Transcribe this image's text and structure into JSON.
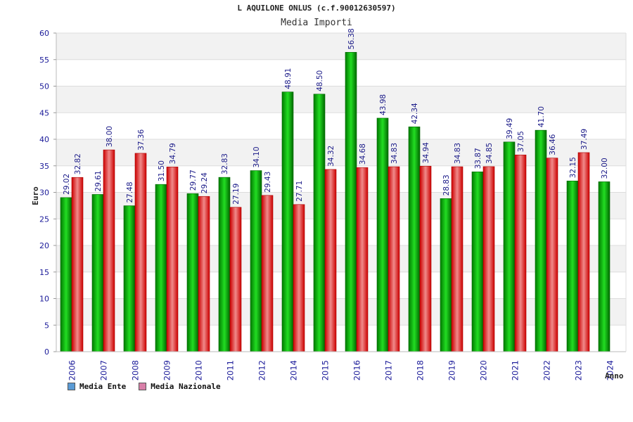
{
  "chart_data": {
    "type": "bar",
    "title": "L AQUILONE ONLUS (c.f.90012630597)",
    "subtitle": "Media Importi",
    "xlabel": "Anno",
    "ylabel": "Euro",
    "ylim": [
      0,
      60
    ],
    "yticks": [
      0,
      5,
      10,
      15,
      20,
      25,
      30,
      35,
      40,
      45,
      50,
      55,
      60
    ],
    "categories": [
      "2006",
      "2007",
      "2008",
      "2009",
      "2010",
      "2011",
      "2012",
      "2014",
      "2015",
      "2016",
      "2017",
      "2018",
      "2019",
      "2020",
      "2021",
      "2022",
      "2023",
      "2024"
    ],
    "series": [
      {
        "name": "Media Ente",
        "color": "#00aa00",
        "values": [
          29.02,
          29.61,
          27.48,
          31.5,
          29.77,
          32.83,
          34.1,
          48.91,
          48.5,
          56.38,
          43.98,
          42.34,
          28.83,
          33.87,
          39.49,
          41.7,
          32.15,
          32.0
        ],
        "labels": [
          "29.02",
          "29.61",
          "27.48",
          "31.50",
          "29.77",
          "32.83",
          "34.10",
          "48.91",
          "48.50",
          "56.38",
          "43.98",
          "42.34",
          "28.83",
          "33.87",
          "39.49",
          "41.70",
          "32.15",
          "32.00"
        ]
      },
      {
        "name": "Media Nazionale",
        "color": "#dd1111",
        "values": [
          32.82,
          38.0,
          37.36,
          34.79,
          29.24,
          27.19,
          29.43,
          27.71,
          34.32,
          34.68,
          34.83,
          34.94,
          34.83,
          34.85,
          37.05,
          36.46,
          37.49,
          null
        ],
        "labels": [
          "32.82",
          "38.00",
          "37.36",
          "34.79",
          "29.24",
          "27.19",
          "29.43",
          "27.71",
          "34.32",
          "34.68",
          "34.83",
          "34.94",
          "34.83",
          "34.85",
          "37.05",
          "36.46",
          "37.49",
          ""
        ]
      }
    ],
    "legend": [
      {
        "label": "Media Ente",
        "color": "#5b9bd5"
      },
      {
        "label": "Media Nazionale",
        "color": "#d87fa8"
      }
    ],
    "grid": true,
    "legend_position": "bottom-left"
  }
}
